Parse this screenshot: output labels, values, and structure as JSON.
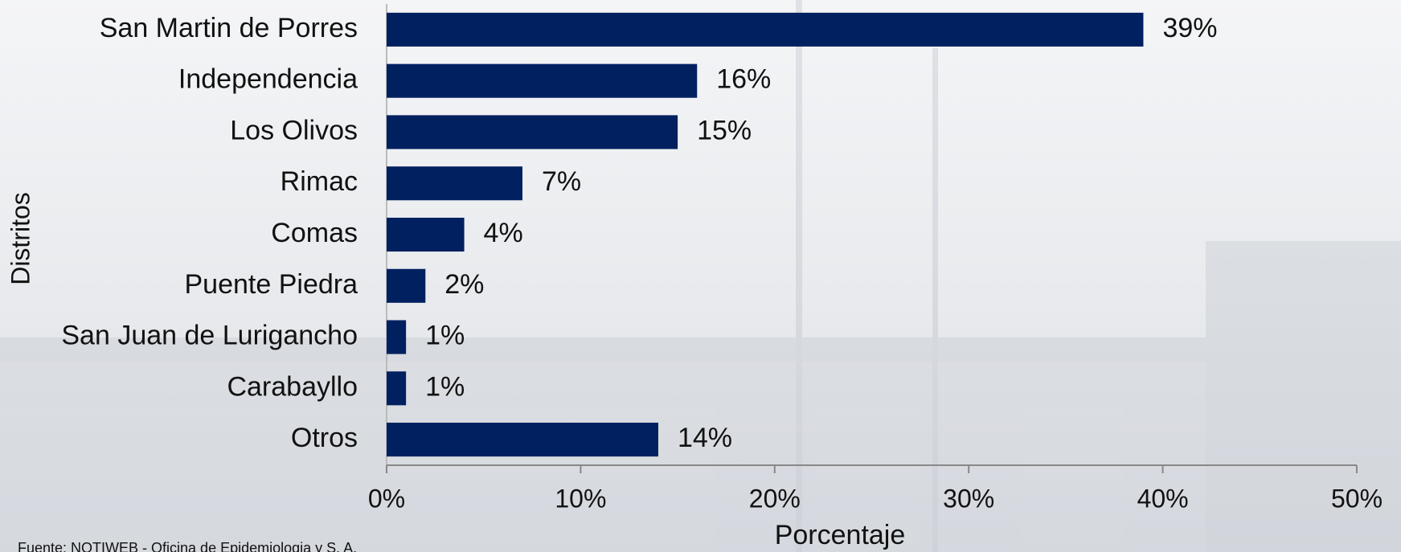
{
  "chart_data": {
    "type": "barh",
    "categories": [
      "San Martin de Porres",
      "Independencia",
      "Los Olivos",
      "Rimac",
      "Comas",
      "Puente Piedra",
      "San Juan de Lurigancho",
      "Carabayllo",
      "Otros"
    ],
    "values": [
      39,
      16,
      15,
      7,
      4,
      2,
      1,
      1,
      14
    ],
    "value_labels": [
      "39%",
      "16%",
      "15%",
      "7%",
      "4%",
      "2%",
      "1%",
      "1%",
      "14%"
    ],
    "color": "#002060",
    "xlim": [
      0,
      50
    ],
    "xticks": [
      {
        "value": 0,
        "label": "0%"
      },
      {
        "value": 10,
        "label": "10%"
      },
      {
        "value": 20,
        "label": "20%"
      },
      {
        "value": 30,
        "label": "30%"
      },
      {
        "value": 40,
        "label": "40%"
      },
      {
        "value": 50,
        "label": "50%"
      }
    ],
    "xlabel": "Porcentaje",
    "ylabel": "Distritos",
    "source": "Fuente: NOTIWEB - Oficina de Epidemiologia y S. A."
  }
}
